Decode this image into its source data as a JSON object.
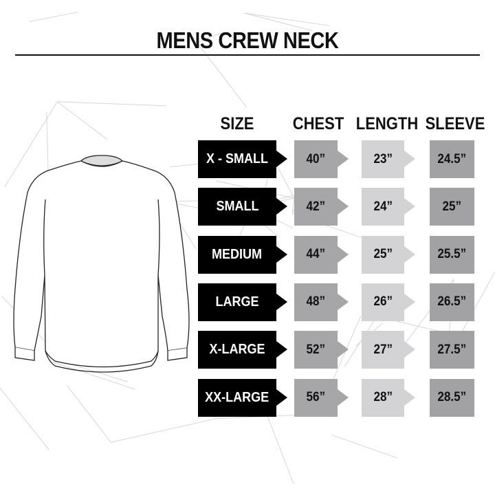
{
  "title": "MENS CREW NECK",
  "headers": {
    "size": "SIZE",
    "chest": "CHEST",
    "length": "LENGTH",
    "sleeve": "SLEEVE"
  },
  "rows": [
    {
      "size": "X - SMALL",
      "chest": "40”",
      "length": "23”",
      "sleeve": "24.5”"
    },
    {
      "size": "SMALL",
      "chest": "42”",
      "length": "24”",
      "sleeve": "25”"
    },
    {
      "size": "MEDIUM",
      "chest": "44”",
      "length": "25”",
      "sleeve": "25.5”"
    },
    {
      "size": "LARGE",
      "chest": "48”",
      "length": "26”",
      "sleeve": "26.5”"
    },
    {
      "size": "X-LARGE",
      "chest": "52”",
      "length": "27”",
      "sleeve": "27.5”"
    },
    {
      "size": "XX-LARGE",
      "chest": "56”",
      "length": "28”",
      "sleeve": "28.5”"
    }
  ],
  "colors": {
    "size": "#000000",
    "chest": "#a6a6a8",
    "length": "#d3d3d5",
    "sleeve": "#a2a2a4"
  },
  "illustration": "crew-neck-sweatshirt"
}
